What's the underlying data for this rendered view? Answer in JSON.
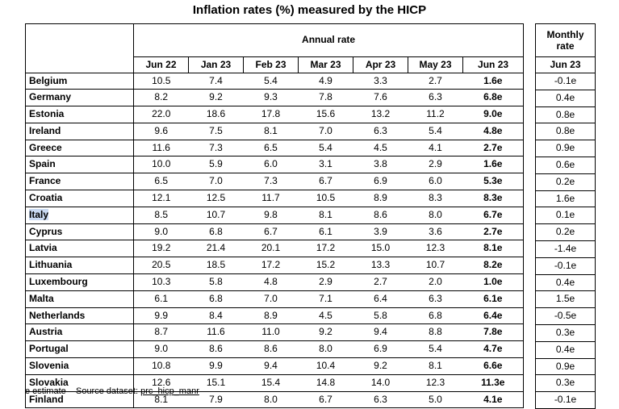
{
  "title": "Inflation rates (%) measured by the HICP",
  "annual_header": "Annual rate",
  "monthly_header_line1": "Monthly",
  "monthly_header_line2": "rate",
  "columns": [
    "Jun 22",
    "Jan 23",
    "Feb 23",
    "Mar 23",
    "Apr 23",
    "May 23",
    "Jun 23"
  ],
  "monthly_column": "Jun 23",
  "rows": [
    {
      "country": "Belgium",
      "values": [
        "10.5",
        "7.4",
        "5.4",
        "4.9",
        "3.3",
        "2.7",
        "1.6e"
      ],
      "monthly": "-0.1e"
    },
    {
      "country": "Germany",
      "values": [
        "8.2",
        "9.2",
        "9.3",
        "7.8",
        "7.6",
        "6.3",
        "6.8e"
      ],
      "monthly": "0.4e"
    },
    {
      "country": "Estonia",
      "values": [
        "22.0",
        "18.6",
        "17.8",
        "15.6",
        "13.2",
        "11.2",
        "9.0e"
      ],
      "monthly": "0.8e"
    },
    {
      "country": "Ireland",
      "values": [
        "9.6",
        "7.5",
        "8.1",
        "7.0",
        "6.3",
        "5.4",
        "4.8e"
      ],
      "monthly": "0.8e"
    },
    {
      "country": "Greece",
      "values": [
        "11.6",
        "7.3",
        "6.5",
        "5.4",
        "4.5",
        "4.1",
        "2.7e"
      ],
      "monthly": "0.9e"
    },
    {
      "country": "Spain",
      "values": [
        "10.0",
        "5.9",
        "6.0",
        "3.1",
        "3.8",
        "2.9",
        "1.6e"
      ],
      "monthly": "0.6e"
    },
    {
      "country": "France",
      "values": [
        "6.5",
        "7.0",
        "7.3",
        "6.7",
        "6.9",
        "6.0",
        "5.3e"
      ],
      "monthly": "0.2e"
    },
    {
      "country": "Croatia",
      "values": [
        "12.1",
        "12.5",
        "11.7",
        "10.5",
        "8.9",
        "8.3",
        "8.3e"
      ],
      "monthly": "1.6e"
    },
    {
      "country": "Italy",
      "values": [
        "8.5",
        "10.7",
        "9.8",
        "8.1",
        "8.6",
        "8.0",
        "6.7e"
      ],
      "monthly": "0.1e",
      "highlight": true
    },
    {
      "country": "Cyprus",
      "values": [
        "9.0",
        "6.8",
        "6.7",
        "6.1",
        "3.9",
        "3.6",
        "2.7e"
      ],
      "monthly": "0.2e"
    },
    {
      "country": "Latvia",
      "values": [
        "19.2",
        "21.4",
        "20.1",
        "17.2",
        "15.0",
        "12.3",
        "8.1e"
      ],
      "monthly": "-1.4e"
    },
    {
      "country": "Lithuania",
      "values": [
        "20.5",
        "18.5",
        "17.2",
        "15.2",
        "13.3",
        "10.7",
        "8.2e"
      ],
      "monthly": "-0.1e"
    },
    {
      "country": "Luxembourg",
      "values": [
        "10.3",
        "5.8",
        "4.8",
        "2.9",
        "2.7",
        "2.0",
        "1.0e"
      ],
      "monthly": "0.4e"
    },
    {
      "country": "Malta",
      "values": [
        "6.1",
        "6.8",
        "7.0",
        "7.1",
        "6.4",
        "6.3",
        "6.1e"
      ],
      "monthly": "1.5e"
    },
    {
      "country": "Netherlands",
      "values": [
        "9.9",
        "8.4",
        "8.9",
        "4.5",
        "5.8",
        "6.8",
        "6.4e"
      ],
      "monthly": "-0.5e"
    },
    {
      "country": "Austria",
      "values": [
        "8.7",
        "11.6",
        "11.0",
        "9.2",
        "9.4",
        "8.8",
        "7.8e"
      ],
      "monthly": "0.3e"
    },
    {
      "country": "Portugal",
      "values": [
        "9.0",
        "8.6",
        "8.6",
        "8.0",
        "6.9",
        "5.4",
        "4.7e"
      ],
      "monthly": "0.4e"
    },
    {
      "country": "Slovenia",
      "values": [
        "10.8",
        "9.9",
        "9.4",
        "10.4",
        "9.2",
        "8.1",
        "6.6e"
      ],
      "monthly": "0.9e"
    },
    {
      "country": "Slovakia",
      "values": [
        "12.6",
        "15.1",
        "15.4",
        "14.8",
        "14.0",
        "12.3",
        "11.3e"
      ],
      "monthly": "0.3e"
    },
    {
      "country": "Finland",
      "values": [
        "8.1",
        "7.9",
        "8.0",
        "6.7",
        "6.3",
        "5.0",
        "4.1e"
      ],
      "monthly": "-0.1e"
    }
  ],
  "footer": {
    "note": "e estimate",
    "source_label": "Source dataset:",
    "source_link": "prc_hicp_manr"
  }
}
